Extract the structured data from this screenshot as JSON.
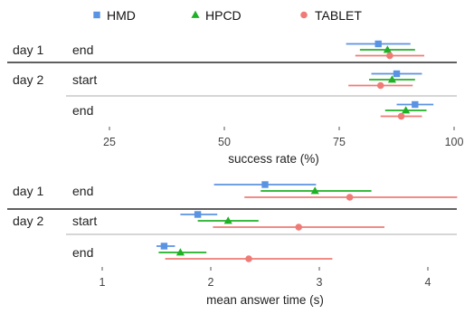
{
  "colors": {
    "HMD": "#5b93e3",
    "HPCD": "#1fb026",
    "TABLET": "#ef7b76",
    "divider_major": "#000000",
    "divider_minor": "#bdbdbd"
  },
  "legend": {
    "placement": "top",
    "items": [
      {
        "name": "HMD",
        "marker": "square"
      },
      {
        "name": "HPCD",
        "marker": "triangle"
      },
      {
        "name": "TABLET",
        "marker": "circle"
      }
    ]
  },
  "chart_data": [
    {
      "type": "point-range",
      "xlabel": "success rate (%)",
      "xlim": [
        18,
        101
      ],
      "xticks": [
        25,
        50,
        75,
        100
      ],
      "rows": [
        {
          "day": "day 1",
          "session": "end"
        },
        {
          "day": "day 2",
          "session": "start"
        },
        {
          "day": "",
          "session": "end"
        }
      ],
      "series": [
        {
          "name": "HMD",
          "points": [
            {
              "mean": 83.5,
              "low": 76.5,
              "high": 90.5
            },
            {
              "mean": 87.5,
              "low": 82,
              "high": 93
            },
            {
              "mean": 91.5,
              "low": 87.5,
              "high": 95.5
            }
          ]
        },
        {
          "name": "HPCD",
          "points": [
            {
              "mean": 85.5,
              "low": 79.5,
              "high": 91.5
            },
            {
              "mean": 86.5,
              "low": 81.5,
              "high": 91.5
            },
            {
              "mean": 89.5,
              "low": 85,
              "high": 94
            }
          ]
        },
        {
          "name": "TABLET",
          "points": [
            {
              "mean": 86,
              "low": 78.5,
              "high": 93.5
            },
            {
              "mean": 84,
              "low": 77,
              "high": 91
            },
            {
              "mean": 88.5,
              "low": 84,
              "high": 93
            }
          ]
        }
      ]
    },
    {
      "type": "point-range",
      "xlabel": "mean answer time (s)",
      "xlim": [
        0.55,
        4.3
      ],
      "xticks": [
        1,
        2,
        3,
        4
      ],
      "rows": [
        {
          "day": "day 1",
          "session": "end"
        },
        {
          "day": "day 2",
          "session": "start"
        },
        {
          "day": "",
          "session": "end"
        }
      ],
      "series": [
        {
          "name": "HMD",
          "points": [
            {
              "mean": 2.5,
              "low": 2.03,
              "high": 2.97
            },
            {
              "mean": 1.88,
              "low": 1.72,
              "high": 2.06
            },
            {
              "mean": 1.57,
              "low": 1.5,
              "high": 1.67
            }
          ]
        },
        {
          "name": "HPCD",
          "points": [
            {
              "mean": 2.96,
              "low": 2.46,
              "high": 3.48
            },
            {
              "mean": 2.16,
              "low": 1.88,
              "high": 2.44
            },
            {
              "mean": 1.72,
              "low": 1.52,
              "high": 1.96
            }
          ]
        },
        {
          "name": "TABLET",
          "points": [
            {
              "mean": 3.28,
              "low": 2.31,
              "high": 4.27
            },
            {
              "mean": 2.81,
              "low": 2.02,
              "high": 3.6
            },
            {
              "mean": 2.35,
              "low": 1.58,
              "high": 3.12
            }
          ]
        }
      ]
    }
  ]
}
